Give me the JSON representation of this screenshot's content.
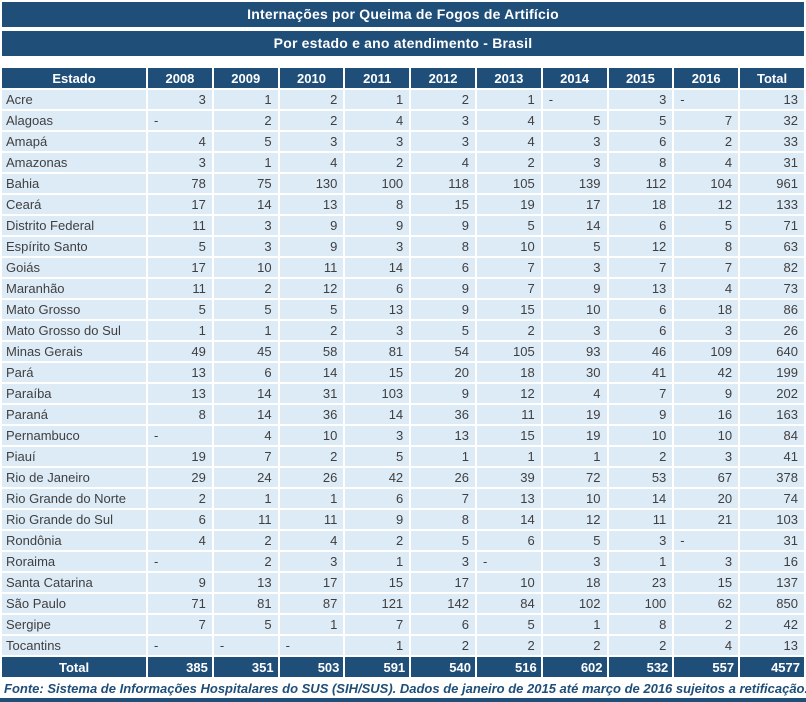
{
  "page": {
    "title": "Internações por Queima de Fogos de Artifício",
    "subtitle": "Por estado e ano atendimento - Brasil",
    "footer": "Fonte: Sistema de Informações Hospitalares do SUS (SIH/SUS).  Dados de janeiro de 2015 até março de 2016 sujeitos a retificação."
  },
  "colors": {
    "header_bg": "#1F4E79",
    "header_text": "#FFFFFF",
    "row_bg": "#DDEBF7",
    "body_text": "#3F3F3F",
    "footnote_text": "#1F4E79",
    "grid_line": "#FFFFFF"
  },
  "chart_data": {
    "type": "table",
    "title": "Internações por Queima de Fogos de Artifício",
    "subtitle": "Por estado e ano atendimento - Brasil",
    "columns": [
      "Estado",
      "2008",
      "2009",
      "2010",
      "2011",
      "2012",
      "2013",
      "2014",
      "2015",
      "2016",
      "Total"
    ],
    "rows": [
      {
        "state": "Acre",
        "values": [
          "3",
          "1",
          "2",
          "1",
          "2",
          "1",
          "-",
          "3",
          "-",
          "13"
        ]
      },
      {
        "state": "Alagoas",
        "values": [
          "-",
          "2",
          "2",
          "4",
          "3",
          "4",
          "5",
          "5",
          "7",
          "32"
        ]
      },
      {
        "state": "Amapá",
        "values": [
          "4",
          "5",
          "3",
          "3",
          "3",
          "4",
          "3",
          "6",
          "2",
          "33"
        ]
      },
      {
        "state": "Amazonas",
        "values": [
          "3",
          "1",
          "4",
          "2",
          "4",
          "2",
          "3",
          "8",
          "4",
          "31"
        ]
      },
      {
        "state": "Bahia",
        "values": [
          "78",
          "75",
          "130",
          "100",
          "118",
          "105",
          "139",
          "112",
          "104",
          "961"
        ]
      },
      {
        "state": "Ceará",
        "values": [
          "17",
          "14",
          "13",
          "8",
          "15",
          "19",
          "17",
          "18",
          "12",
          "133"
        ]
      },
      {
        "state": "Distrito Federal",
        "values": [
          "11",
          "3",
          "9",
          "9",
          "9",
          "5",
          "14",
          "6",
          "5",
          "71"
        ]
      },
      {
        "state": "Espírito Santo",
        "values": [
          "5",
          "3",
          "9",
          "3",
          "8",
          "10",
          "5",
          "12",
          "8",
          "63"
        ]
      },
      {
        "state": "Goiás",
        "values": [
          "17",
          "10",
          "11",
          "14",
          "6",
          "7",
          "3",
          "7",
          "7",
          "82"
        ]
      },
      {
        "state": "Maranhão",
        "values": [
          "11",
          "2",
          "12",
          "6",
          "9",
          "7",
          "9",
          "13",
          "4",
          "73"
        ]
      },
      {
        "state": "Mato Grosso",
        "values": [
          "5",
          "5",
          "5",
          "13",
          "9",
          "15",
          "10",
          "6",
          "18",
          "86"
        ]
      },
      {
        "state": "Mato Grosso do Sul",
        "values": [
          "1",
          "1",
          "2",
          "3",
          "5",
          "2",
          "3",
          "6",
          "3",
          "26"
        ]
      },
      {
        "state": "Minas Gerais",
        "values": [
          "49",
          "45",
          "58",
          "81",
          "54",
          "105",
          "93",
          "46",
          "109",
          "640"
        ]
      },
      {
        "state": "Pará",
        "values": [
          "13",
          "6",
          "14",
          "15",
          "20",
          "18",
          "30",
          "41",
          "42",
          "199"
        ]
      },
      {
        "state": "Paraíba",
        "values": [
          "13",
          "14",
          "31",
          "103",
          "9",
          "12",
          "4",
          "7",
          "9",
          "202"
        ]
      },
      {
        "state": "Paraná",
        "values": [
          "8",
          "14",
          "36",
          "14",
          "36",
          "11",
          "19",
          "9",
          "16",
          "163"
        ]
      },
      {
        "state": "Pernambuco",
        "values": [
          "-",
          "4",
          "10",
          "3",
          "13",
          "15",
          "19",
          "10",
          "10",
          "84"
        ]
      },
      {
        "state": "Piauí",
        "values": [
          "19",
          "7",
          "2",
          "5",
          "1",
          "1",
          "1",
          "2",
          "3",
          "41"
        ]
      },
      {
        "state": "Rio de Janeiro",
        "values": [
          "29",
          "24",
          "26",
          "42",
          "26",
          "39",
          "72",
          "53",
          "67",
          "378"
        ]
      },
      {
        "state": "Rio Grande do Norte",
        "values": [
          "2",
          "1",
          "1",
          "6",
          "7",
          "13",
          "10",
          "14",
          "20",
          "74"
        ]
      },
      {
        "state": "Rio Grande do Sul",
        "values": [
          "6",
          "11",
          "11",
          "9",
          "8",
          "14",
          "12",
          "11",
          "21",
          "103"
        ]
      },
      {
        "state": "Rondônia",
        "values": [
          "4",
          "2",
          "4",
          "2",
          "5",
          "6",
          "5",
          "3",
          "-",
          "31"
        ]
      },
      {
        "state": "Roraima",
        "values": [
          "-",
          "2",
          "3",
          "1",
          "3",
          "-",
          "3",
          "1",
          "3",
          "16"
        ]
      },
      {
        "state": "Santa Catarina",
        "values": [
          "9",
          "13",
          "17",
          "15",
          "17",
          "10",
          "18",
          "23",
          "15",
          "137"
        ]
      },
      {
        "state": "São Paulo",
        "values": [
          "71",
          "81",
          "87",
          "121",
          "142",
          "84",
          "102",
          "100",
          "62",
          "850"
        ]
      },
      {
        "state": "Sergipe",
        "values": [
          "7",
          "5",
          "1",
          "7",
          "6",
          "5",
          "1",
          "8",
          "2",
          "42"
        ]
      },
      {
        "state": "Tocantins",
        "values": [
          "-",
          "-",
          "-",
          "1",
          "2",
          "2",
          "2",
          "2",
          "4",
          "13"
        ]
      }
    ],
    "total_row": {
      "label": "Total",
      "values": [
        "385",
        "351",
        "503",
        "591",
        "540",
        "516",
        "602",
        "532",
        "557",
        "4577"
      ]
    },
    "footer": "Fonte: Sistema de Informações Hospitalares do SUS (SIH/SUS).  Dados de janeiro de 2015 até março de 2016 sujeitos a retificação.",
    "layout": {
      "grid": true,
      "legend": false
    }
  }
}
